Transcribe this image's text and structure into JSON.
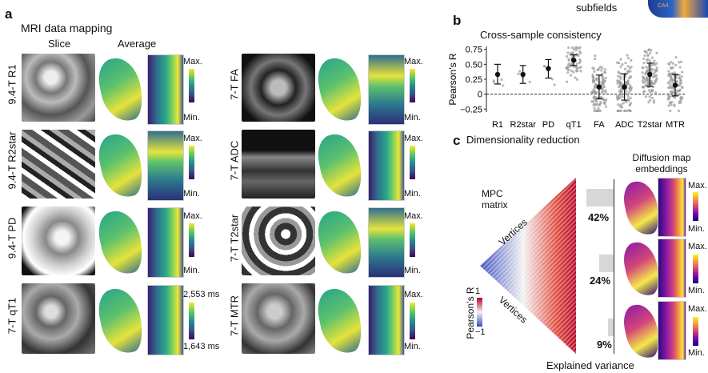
{
  "panel_a": {
    "letter": "a",
    "title": "MRI data mapping",
    "col_slice": "Slice",
    "col_average": "Average",
    "max_label": "Max.",
    "min_label": "Min.",
    "qt1_max": "2,553 ms",
    "qt1_min": "1,643 ms",
    "rows_left": [
      "9.4-T R1",
      "9.4-T R2star",
      "9.4-T PD",
      "7-T qT1"
    ],
    "rows_right": [
      "7-T FA",
      "7-T ADC",
      "7-T T2star",
      "7-T MTR"
    ]
  },
  "panel_b": {
    "letter": "b",
    "title": "Cross-sample consistency",
    "subfields_label": "subfields",
    "subfield_tag": "CA4"
  },
  "panel_c": {
    "letter": "c",
    "title": "Dimensionality reduction",
    "mpc_label": "MPC\nmatrix",
    "vertices_top": "Vertices",
    "vertices_bottom": "Vertices",
    "cbar_max": "1",
    "cbar_min": "−1",
    "cbar_label": "Pearson’s R",
    "diff_title": "Diffusion map\nembeddings",
    "explained_label": "Explained variance",
    "variance": [
      "42%",
      "24%",
      "9%"
    ],
    "max_label": "Max.",
    "min_label": "Min."
  },
  "chart_data": {
    "type": "scatter",
    "title": "Cross-sample consistency",
    "ylabel": "Pearson’s R",
    "categories": [
      "R1",
      "R2star",
      "PD",
      "qT1",
      "FA",
      "ADC",
      "T2star",
      "MTR"
    ],
    "yticks": [
      "0.75",
      "0.50",
      "0.25",
      "0",
      "−0.25"
    ],
    "ylim": [
      -0.3,
      0.8
    ],
    "means": [
      0.33,
      0.33,
      0.43,
      0.57,
      0.12,
      0.12,
      0.33,
      0.15
    ],
    "err_low": [
      0.17,
      0.18,
      0.27,
      0.48,
      -0.08,
      -0.1,
      0.13,
      -0.03
    ],
    "err_high": [
      0.5,
      0.48,
      0.58,
      0.66,
      0.32,
      0.34,
      0.52,
      0.33
    ],
    "reference_line": 0
  }
}
